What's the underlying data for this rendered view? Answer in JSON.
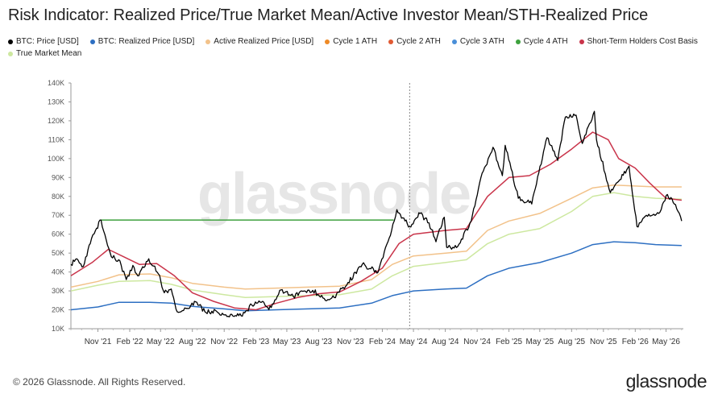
{
  "title": "Risk Indicator: Realized Price/True Market Mean/Active Investor Mean/STH-Realized Price",
  "legend": [
    {
      "label": "BTC: Price [USD]",
      "color": "#000000"
    },
    {
      "label": "BTC: Realized Price [USD]",
      "color": "#2d6fc2"
    },
    {
      "label": "Active Realized Price [USD]",
      "color": "#f2c28a"
    },
    {
      "label": "Cycle 1 ATH",
      "color": "#ee8a26"
    },
    {
      "label": "Cycle 2 ATH",
      "color": "#e15a33"
    },
    {
      "label": "Cycle 3 ATH",
      "color": "#4a8fd8"
    },
    {
      "label": "Cycle 4 ATH",
      "color": "#3ea13e"
    },
    {
      "label": "Short-Term Holders Cost Basis",
      "color": "#c9344a"
    },
    {
      "label": "True Market Mean",
      "color": "#cde8a0"
    }
  ],
  "watermark": "glassnode",
  "footer": {
    "copyright": "© 2026 Glassnode. All Rights Reserved.",
    "logo": "glassnode"
  },
  "chart_data": {
    "type": "line",
    "y_ticks": [
      "10K",
      "20K",
      "30K",
      "40K",
      "50K",
      "60K",
      "70K",
      "80K",
      "90K",
      "100K",
      "110K",
      "120K",
      "130K",
      "140K"
    ],
    "ylim": [
      10000,
      140000
    ],
    "x_tick_labels": [
      "Nov '21",
      "Feb '22",
      "May '22",
      "Aug '22",
      "Nov '22",
      "Feb '23",
      "May '23",
      "Aug '23",
      "Nov '23",
      "Feb '24",
      "May '24",
      "Aug '24",
      "Nov '24",
      "Feb '25",
      "May '25",
      "Aug '25",
      "Nov '25",
      "Feb '26",
      "May '26"
    ],
    "x_range": [
      "2021-08-15",
      "2026-06-20"
    ],
    "marker_date": "2024-04-20",
    "cycle4_ath": {
      "value": 67500,
      "start": "2021-11-10",
      "end": "2024-03-05"
    },
    "series": [
      {
        "name": "BTC: Price [USD]",
        "color": "#000000",
        "points": [
          [
            "2021-08-15",
            44000
          ],
          [
            "2021-09-01",
            47000
          ],
          [
            "2021-09-20",
            43000
          ],
          [
            "2021-10-10",
            55000
          ],
          [
            "2021-10-25",
            62000
          ],
          [
            "2021-11-10",
            67500
          ],
          [
            "2021-11-25",
            57000
          ],
          [
            "2021-12-10",
            48000
          ],
          [
            "2021-12-31",
            46500
          ],
          [
            "2022-01-22",
            36000
          ],
          [
            "2022-02-10",
            43500
          ],
          [
            "2022-02-24",
            38000
          ],
          [
            "2022-03-28",
            47000
          ],
          [
            "2022-04-25",
            39000
          ],
          [
            "2022-05-12",
            29000
          ],
          [
            "2022-06-01",
            31000
          ],
          [
            "2022-06-18",
            19000
          ],
          [
            "2022-07-10",
            21000
          ],
          [
            "2022-08-14",
            24000
          ],
          [
            "2022-09-06",
            19000
          ],
          [
            "2022-10-10",
            19200
          ],
          [
            "2022-11-09",
            16500
          ],
          [
            "2022-12-20",
            16800
          ],
          [
            "2023-01-20",
            22500
          ],
          [
            "2023-02-20",
            24500
          ],
          [
            "2023-03-10",
            20000
          ],
          [
            "2023-04-14",
            30500
          ],
          [
            "2023-05-20",
            27000
          ],
          [
            "2023-06-20",
            30000
          ],
          [
            "2023-07-15",
            30300
          ],
          [
            "2023-08-17",
            26000
          ],
          [
            "2023-09-15",
            26500
          ],
          [
            "2023-10-25",
            34500
          ],
          [
            "2023-12-05",
            44000
          ],
          [
            "2024-01-20",
            40000
          ],
          [
            "2024-02-28",
            62000
          ],
          [
            "2024-03-14",
            73000
          ],
          [
            "2024-04-20",
            64000
          ],
          [
            "2024-05-20",
            71000
          ],
          [
            "2024-06-15",
            66000
          ],
          [
            "2024-07-05",
            56000
          ],
          [
            "2024-07-29",
            69000
          ],
          [
            "2024-08-05",
            53000
          ],
          [
            "2024-09-06",
            53500
          ],
          [
            "2024-10-15",
            67000
          ],
          [
            "2024-11-12",
            90000
          ],
          [
            "2024-12-17",
            106000
          ],
          [
            "2025-01-13",
            91000
          ],
          [
            "2025-01-21",
            107000
          ],
          [
            "2025-02-28",
            79000
          ],
          [
            "2025-04-08",
            76000
          ],
          [
            "2025-05-22",
            111000
          ],
          [
            "2025-06-22",
            99000
          ],
          [
            "2025-07-14",
            122000
          ],
          [
            "2025-08-14",
            123000
          ],
          [
            "2025-09-01",
            108000
          ],
          [
            "2025-10-06",
            125000
          ],
          [
            "2025-10-12",
            110000
          ],
          [
            "2025-11-21",
            82000
          ],
          [
            "2025-12-15",
            88000
          ],
          [
            "2026-01-14",
            96000
          ],
          [
            "2026-02-06",
            64000
          ],
          [
            "2026-03-05",
            70000
          ],
          [
            "2026-04-10",
            71000
          ],
          [
            "2026-05-05",
            81000
          ],
          [
            "2026-05-25",
            76000
          ],
          [
            "2026-06-15",
            67000
          ]
        ]
      },
      {
        "name": "BTC: Realized Price [USD]",
        "color": "#2d6fc2",
        "points": [
          [
            "2021-08-15",
            20000
          ],
          [
            "2021-11-01",
            21500
          ],
          [
            "2022-01-01",
            24000
          ],
          [
            "2022-04-01",
            24000
          ],
          [
            "2022-06-01",
            23500
          ],
          [
            "2022-08-01",
            21800
          ],
          [
            "2022-11-01",
            20500
          ],
          [
            "2023-01-01",
            19500
          ],
          [
            "2023-04-01",
            20000
          ],
          [
            "2023-07-01",
            20500
          ],
          [
            "2023-10-01",
            21000
          ],
          [
            "2024-01-01",
            23500
          ],
          [
            "2024-03-01",
            27500
          ],
          [
            "2024-05-01",
            30000
          ],
          [
            "2024-08-01",
            31000
          ],
          [
            "2024-10-01",
            31500
          ],
          [
            "2024-12-01",
            38000
          ],
          [
            "2025-02-01",
            42000
          ],
          [
            "2025-05-01",
            45000
          ],
          [
            "2025-08-01",
            50000
          ],
          [
            "2025-10-01",
            54500
          ],
          [
            "2025-12-01",
            56000
          ],
          [
            "2026-02-01",
            55500
          ],
          [
            "2026-04-01",
            54500
          ],
          [
            "2026-06-15",
            54000
          ]
        ]
      },
      {
        "name": "Active Realized Price [USD]",
        "color": "#f2c28a",
        "points": [
          [
            "2021-08-15",
            32000
          ],
          [
            "2021-11-01",
            35000
          ],
          [
            "2022-01-01",
            38500
          ],
          [
            "2022-04-01",
            39000
          ],
          [
            "2022-06-01",
            37000
          ],
          [
            "2022-08-01",
            34000
          ],
          [
            "2022-11-01",
            32000
          ],
          [
            "2023-01-01",
            31000
          ],
          [
            "2023-04-01",
            31500
          ],
          [
            "2023-07-01",
            32000
          ],
          [
            "2023-10-01",
            32500
          ],
          [
            "2024-01-01",
            36000
          ],
          [
            "2024-03-01",
            44000
          ],
          [
            "2024-05-01",
            48500
          ],
          [
            "2024-08-01",
            50000
          ],
          [
            "2024-10-01",
            51000
          ],
          [
            "2024-12-01",
            62000
          ],
          [
            "2025-02-01",
            67000
          ],
          [
            "2025-05-01",
            71000
          ],
          [
            "2025-08-01",
            79000
          ],
          [
            "2025-10-01",
            84500
          ],
          [
            "2025-12-01",
            86000
          ],
          [
            "2026-02-01",
            85500
          ],
          [
            "2026-04-01",
            85000
          ],
          [
            "2026-06-15",
            85000
          ]
        ]
      },
      {
        "name": "Short-Term Holders Cost Basis",
        "color": "#c9344a",
        "points": [
          [
            "2021-08-15",
            38000
          ],
          [
            "2021-10-15",
            45000
          ],
          [
            "2021-12-01",
            52000
          ],
          [
            "2022-01-15",
            48000
          ],
          [
            "2022-03-01",
            44000
          ],
          [
            "2022-04-20",
            44500
          ],
          [
            "2022-06-10",
            38000
          ],
          [
            "2022-08-01",
            29000
          ],
          [
            "2022-10-01",
            24500
          ],
          [
            "2022-12-01",
            21000
          ],
          [
            "2023-02-01",
            20000
          ],
          [
            "2023-04-01",
            23500
          ],
          [
            "2023-06-01",
            26500
          ],
          [
            "2023-08-01",
            28500
          ],
          [
            "2023-10-01",
            29500
          ],
          [
            "2023-12-01",
            35000
          ],
          [
            "2024-02-01",
            42000
          ],
          [
            "2024-03-20",
            55000
          ],
          [
            "2024-05-01",
            60000
          ],
          [
            "2024-08-01",
            62000
          ],
          [
            "2024-10-01",
            63000
          ],
          [
            "2024-12-01",
            80000
          ],
          [
            "2025-02-01",
            90000
          ],
          [
            "2025-04-01",
            91000
          ],
          [
            "2025-06-01",
            97000
          ],
          [
            "2025-08-01",
            105000
          ],
          [
            "2025-10-01",
            114000
          ],
          [
            "2025-11-15",
            110000
          ],
          [
            "2025-12-15",
            100000
          ],
          [
            "2026-02-01",
            95000
          ],
          [
            "2026-03-15",
            87000
          ],
          [
            "2026-05-01",
            79000
          ],
          [
            "2026-06-15",
            78000
          ]
        ]
      },
      {
        "name": "True Market Mean",
        "color": "#cde8a0",
        "points": [
          [
            "2021-08-15",
            30000
          ],
          [
            "2021-11-01",
            33000
          ],
          [
            "2022-01-01",
            35000
          ],
          [
            "2022-04-01",
            35500
          ],
          [
            "2022-06-01",
            33500
          ],
          [
            "2022-08-01",
            30500
          ],
          [
            "2022-11-01",
            28000
          ],
          [
            "2023-01-01",
            26500
          ],
          [
            "2023-04-01",
            27000
          ],
          [
            "2023-07-01",
            27500
          ],
          [
            "2023-10-01",
            28000
          ],
          [
            "2024-01-01",
            31000
          ],
          [
            "2024-03-01",
            38000
          ],
          [
            "2024-05-01",
            43000
          ],
          [
            "2024-08-01",
            45000
          ],
          [
            "2024-10-01",
            46500
          ],
          [
            "2024-12-01",
            55000
          ],
          [
            "2025-02-01",
            60000
          ],
          [
            "2025-05-01",
            63000
          ],
          [
            "2025-08-01",
            72000
          ],
          [
            "2025-10-01",
            80000
          ],
          [
            "2025-12-01",
            82000
          ],
          [
            "2026-02-01",
            80000
          ],
          [
            "2026-04-01",
            79000
          ],
          [
            "2026-06-15",
            78500
          ]
        ]
      }
    ]
  }
}
